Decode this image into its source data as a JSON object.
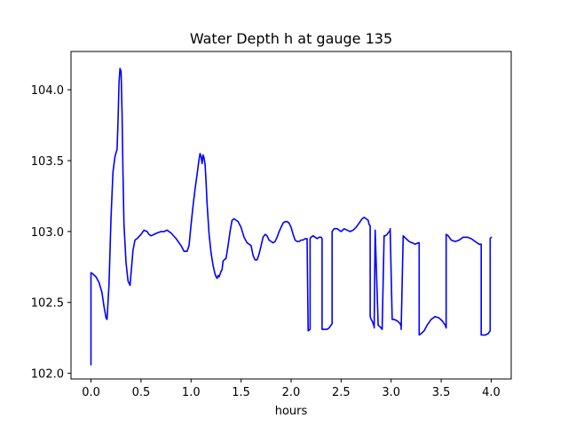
{
  "chart_data": {
    "type": "line",
    "title": "Water Depth h at gauge 135",
    "xlabel": "hours",
    "ylabel": "",
    "xlim": [
      -0.2,
      4.2
    ],
    "ylim": [
      101.96,
      104.27
    ],
    "xticks": [
      0.0,
      0.5,
      1.0,
      1.5,
      2.0,
      2.5,
      3.0,
      3.5,
      4.0
    ],
    "xtick_labels": [
      "0.0",
      "0.5",
      "1.0",
      "1.5",
      "2.0",
      "2.5",
      "3.0",
      "3.5",
      "4.0"
    ],
    "yticks": [
      102.0,
      102.5,
      103.0,
      103.5,
      104.0
    ],
    "ytick_labels": [
      "102.0",
      "102.5",
      "103.0",
      "103.5",
      "104.0"
    ],
    "grid": false,
    "series": [
      {
        "color": "#0000ff",
        "x": [
          0.0,
          0.0,
          0.02,
          0.05,
          0.08,
          0.11,
          0.13,
          0.15,
          0.16,
          0.18,
          0.2,
          0.22,
          0.24,
          0.26,
          0.27,
          0.28,
          0.29,
          0.3,
          0.31,
          0.32,
          0.33,
          0.35,
          0.37,
          0.39,
          0.4,
          0.42,
          0.44,
          0.46,
          0.5,
          0.53,
          0.56,
          0.58,
          0.6,
          0.63,
          0.66,
          0.7,
          0.73,
          0.76,
          0.8,
          0.85,
          0.9,
          0.93,
          0.96,
          0.98,
          1.0,
          1.02,
          1.04,
          1.06,
          1.08,
          1.09,
          1.1,
          1.11,
          1.12,
          1.13,
          1.14,
          1.15,
          1.16,
          1.18,
          1.2,
          1.22,
          1.24,
          1.25,
          1.26,
          1.27,
          1.28,
          1.29,
          1.3,
          1.31,
          1.32,
          1.33,
          1.35,
          1.37,
          1.39,
          1.41,
          1.43,
          1.45,
          1.47,
          1.5,
          1.53,
          1.56,
          1.58,
          1.6,
          1.62,
          1.64,
          1.66,
          1.68,
          1.7,
          1.72,
          1.74,
          1.76,
          1.78,
          1.8,
          1.82,
          1.84,
          1.86,
          1.88,
          1.9,
          1.92,
          1.94,
          1.96,
          1.98,
          2.0,
          2.02,
          2.04,
          2.06,
          2.08,
          2.1,
          2.12,
          2.14,
          2.16,
          2.17,
          2.17,
          2.19,
          2.19,
          2.2,
          2.22,
          2.24,
          2.26,
          2.28,
          2.3,
          2.31,
          2.31,
          2.33,
          2.36,
          2.38,
          2.4,
          2.41,
          2.41,
          2.43,
          2.46,
          2.5,
          2.53,
          2.56,
          2.59,
          2.62,
          2.65,
          2.68,
          2.71,
          2.73,
          2.75,
          2.77,
          2.78,
          2.79,
          2.79,
          2.8,
          2.81,
          2.82,
          2.83,
          2.83,
          2.84,
          2.87,
          2.9,
          2.91,
          2.91,
          2.93,
          2.94,
          2.96,
          2.97,
          2.98,
          2.99,
          2.99,
          3.01,
          3.03,
          3.06,
          3.09,
          3.1,
          3.1,
          3.12,
          3.15,
          3.18,
          3.21,
          3.24,
          3.27,
          3.28,
          3.28,
          3.3,
          3.33,
          3.36,
          3.4,
          3.44,
          3.48,
          3.51,
          3.54,
          3.55,
          3.55,
          3.57,
          3.6,
          3.64,
          3.68,
          3.72,
          3.76,
          3.8,
          3.84,
          3.88,
          3.9,
          3.9,
          3.94,
          3.97,
          3.98,
          3.99,
          3.99,
          4.0
        ],
        "y": [
          102.06,
          102.71,
          102.7,
          102.68,
          102.64,
          102.57,
          102.47,
          102.39,
          102.38,
          102.62,
          103.1,
          103.42,
          103.53,
          103.58,
          103.78,
          104.05,
          104.15,
          104.13,
          103.85,
          103.4,
          103.05,
          102.78,
          102.65,
          102.62,
          102.7,
          102.87,
          102.94,
          102.95,
          102.98,
          103.01,
          103.0,
          102.98,
          102.97,
          102.98,
          102.99,
          103.0,
          103.0,
          103.01,
          102.99,
          102.95,
          102.9,
          102.86,
          102.86,
          102.9,
          103.05,
          103.18,
          103.3,
          103.4,
          103.51,
          103.55,
          103.53,
          103.48,
          103.54,
          103.52,
          103.47,
          103.35,
          103.2,
          102.98,
          102.85,
          102.76,
          102.7,
          102.68,
          102.67,
          102.69,
          102.68,
          102.7,
          102.72,
          102.73,
          102.79,
          102.8,
          102.81,
          102.9,
          103.0,
          103.08,
          103.09,
          103.08,
          103.07,
          103.03,
          102.96,
          102.92,
          102.91,
          102.9,
          102.83,
          102.8,
          102.8,
          102.84,
          102.9,
          102.96,
          102.98,
          102.97,
          102.94,
          102.93,
          102.92,
          102.93,
          102.96,
          103.0,
          103.03,
          103.06,
          103.07,
          103.07,
          103.06,
          103.03,
          102.98,
          102.94,
          102.93,
          102.93,
          102.94,
          102.94,
          102.95,
          102.95,
          102.3,
          102.3,
          102.31,
          102.95,
          102.96,
          102.97,
          102.96,
          102.95,
          102.96,
          102.96,
          102.95,
          102.31,
          102.31,
          102.31,
          102.32,
          102.34,
          102.35,
          103.0,
          103.02,
          103.02,
          103.0,
          103.02,
          103.01,
          103.0,
          103.01,
          103.03,
          103.06,
          103.09,
          103.1,
          103.09,
          103.08,
          103.05,
          103.04,
          102.4,
          102.38,
          102.37,
          102.35,
          102.33,
          102.32,
          103.01,
          102.34,
          102.32,
          102.31,
          102.31,
          102.97,
          102.97,
          102.98,
          102.99,
          103.0,
          103.01,
          103.02,
          102.38,
          102.38,
          102.37,
          102.35,
          102.33,
          102.31,
          102.97,
          102.95,
          102.93,
          102.92,
          102.91,
          102.92,
          102.92,
          102.27,
          102.28,
          102.3,
          102.34,
          102.38,
          102.4,
          102.39,
          102.37,
          102.34,
          102.32,
          102.98,
          102.97,
          102.94,
          102.93,
          102.94,
          102.96,
          102.96,
          102.95,
          102.93,
          102.91,
          102.91,
          102.27,
          102.27,
          102.28,
          102.29,
          102.3,
          102.95,
          102.96
        ]
      }
    ]
  }
}
